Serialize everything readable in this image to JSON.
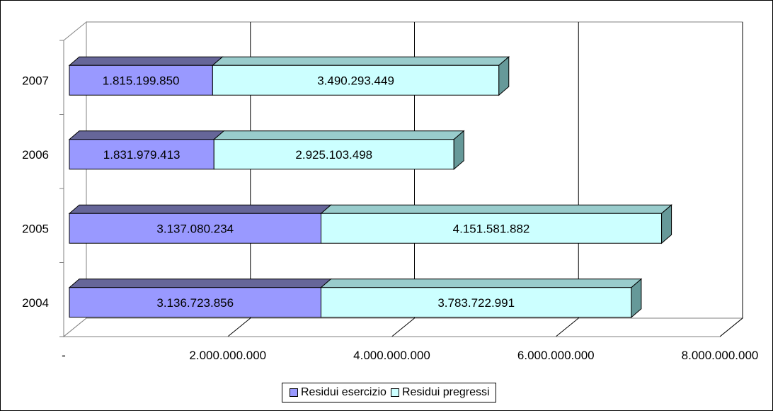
{
  "chart_data": {
    "type": "bar",
    "orientation": "horizontal",
    "stacked": true,
    "categories": [
      "2004",
      "2005",
      "2006",
      "2007"
    ],
    "series": [
      {
        "name": "Residui esercizio",
        "values": [
          3136723856,
          3137080234,
          1831979413,
          1815199850
        ],
        "labels": [
          "3.136.723.856",
          "3.137.080.234",
          "1.831.979.413",
          "1.815.199.850"
        ],
        "color": "#9999ff"
      },
      {
        "name": "Residui pregressi",
        "values": [
          3783722991,
          4151581882,
          2925103498,
          3490293449
        ],
        "labels": [
          "3.783.722.991",
          "4.151.581.882",
          "2.925.103.498",
          "3.490.293.449"
        ],
        "color": "#ccffff"
      }
    ],
    "xlim": [
      0,
      8000000000
    ],
    "xticks": [
      0,
      2000000000,
      4000000000,
      6000000000,
      8000000000
    ],
    "xtick_labels": [
      "-",
      "2.000.000.000",
      "4.000.000.000",
      "6.000.000.000",
      "8.000.000.000"
    ],
    "grid": true,
    "legend_position": "bottom"
  }
}
